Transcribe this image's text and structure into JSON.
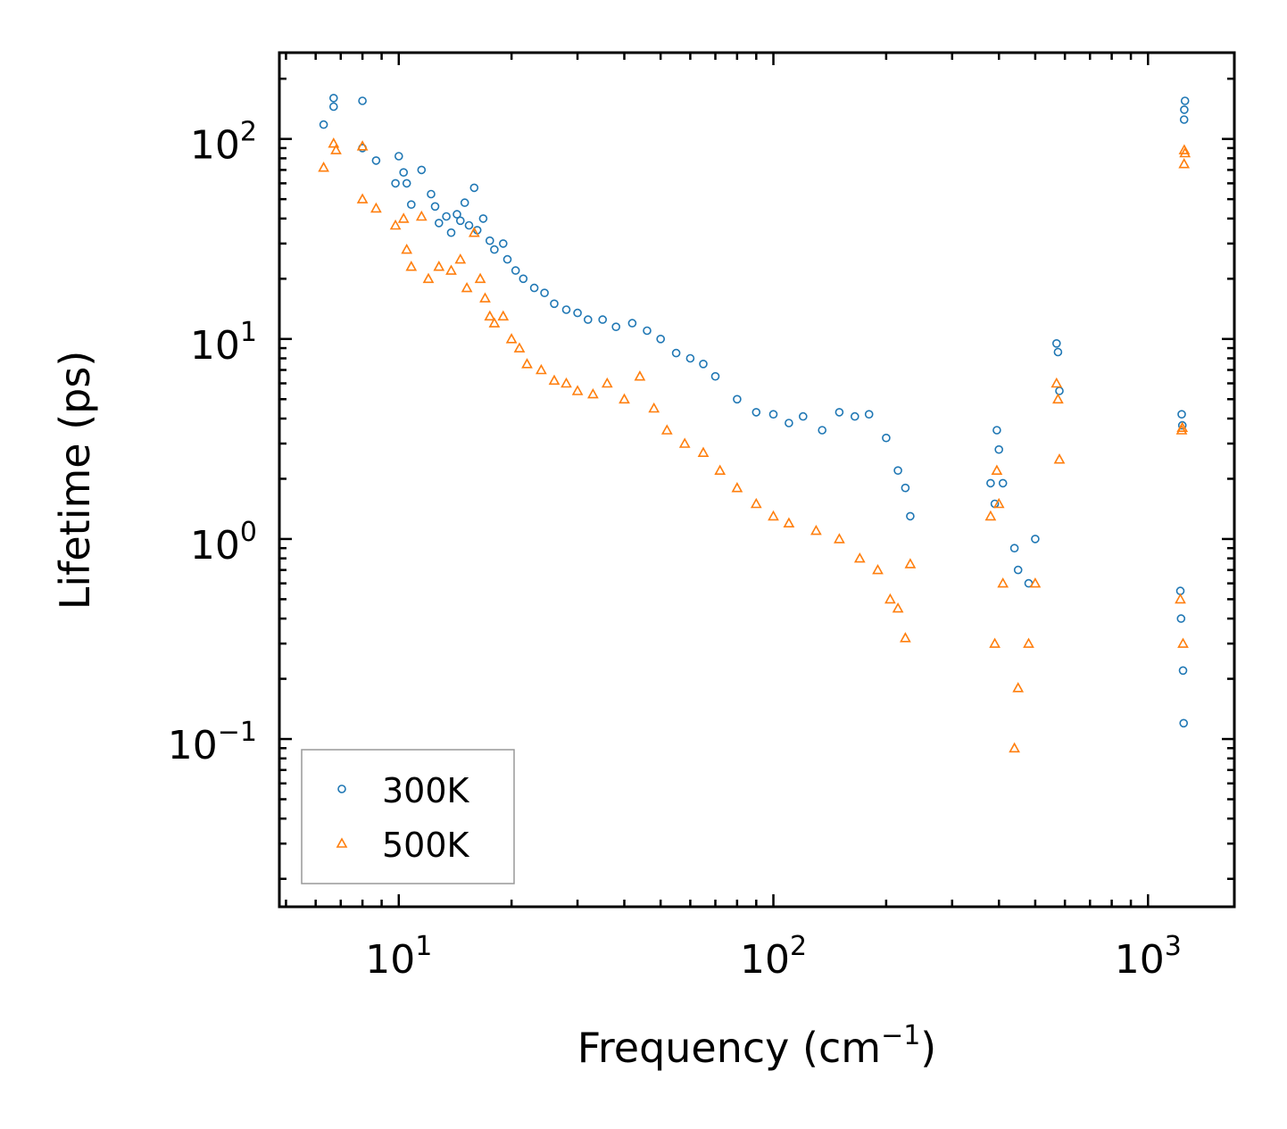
{
  "chart_data": {
    "type": "scatter",
    "title": "",
    "xlabel": "Frequency (cm",
    "xlabel_sup": "−1",
    "xlabel_suffix": ")",
    "ylabel": "Lifetime (ps)",
    "xscale": "log",
    "yscale": "log",
    "xlim": [
      4.8,
      1700
    ],
    "ylim": [
      0.0145,
      270
    ],
    "legend_position": "lower-left",
    "x_ticks": [
      {
        "base": "10",
        "exp": "1"
      },
      {
        "base": "10",
        "exp": "2"
      },
      {
        "base": "10",
        "exp": "3"
      }
    ],
    "y_ticks": [
      {
        "base": "10",
        "exp": "−1"
      },
      {
        "base": "10",
        "exp": "0"
      },
      {
        "base": "10",
        "exp": "1"
      },
      {
        "base": "10",
        "exp": "2"
      }
    ],
    "series": [
      {
        "name": "300K",
        "marker": "circle",
        "color": "#1f77b4",
        "points": [
          [
            6.3,
            118
          ],
          [
            6.7,
            160
          ],
          [
            6.7,
            145
          ],
          [
            8.0,
            155
          ],
          [
            8.0,
            90
          ],
          [
            8.7,
            78
          ],
          [
            9.8,
            60
          ],
          [
            10.0,
            82
          ],
          [
            10.3,
            68
          ],
          [
            10.5,
            60
          ],
          [
            10.8,
            47
          ],
          [
            11.5,
            70
          ],
          [
            12.2,
            53
          ],
          [
            12.5,
            46
          ],
          [
            12.8,
            38
          ],
          [
            13.4,
            41
          ],
          [
            13.8,
            34
          ],
          [
            14.3,
            42
          ],
          [
            14.6,
            39
          ],
          [
            15.0,
            48
          ],
          [
            15.4,
            37
          ],
          [
            15.9,
            57
          ],
          [
            16.2,
            35
          ],
          [
            16.8,
            40
          ],
          [
            17.5,
            31
          ],
          [
            18.0,
            28
          ],
          [
            19.0,
            30
          ],
          [
            19.5,
            25
          ],
          [
            20.5,
            22
          ],
          [
            21.5,
            20
          ],
          [
            23.0,
            18
          ],
          [
            24.5,
            17
          ],
          [
            26.0,
            15
          ],
          [
            28.0,
            14
          ],
          [
            30.0,
            13.5
          ],
          [
            32.0,
            12.5
          ],
          [
            35.0,
            12.5
          ],
          [
            38.0,
            11.5
          ],
          [
            42.0,
            12
          ],
          [
            46.0,
            11
          ],
          [
            50.0,
            10
          ],
          [
            55.0,
            8.5
          ],
          [
            60.0,
            8
          ],
          [
            65.0,
            7.5
          ],
          [
            70.0,
            6.5
          ],
          [
            80.0,
            5
          ],
          [
            90.0,
            4.3
          ],
          [
            100.0,
            4.2
          ],
          [
            110.0,
            3.8
          ],
          [
            120.0,
            4.1
          ],
          [
            135.0,
            3.5
          ],
          [
            150.0,
            4.3
          ],
          [
            165.0,
            4.1
          ],
          [
            180.0,
            4.2
          ],
          [
            200.0,
            3.2
          ],
          [
            215.0,
            2.2
          ],
          [
            225.0,
            1.8
          ],
          [
            232.0,
            1.3
          ],
          [
            380.0,
            1.9
          ],
          [
            390.0,
            1.5
          ],
          [
            395.0,
            3.5
          ],
          [
            400.0,
            2.8
          ],
          [
            410.0,
            1.9
          ],
          [
            440.0,
            0.9
          ],
          [
            450.0,
            0.7
          ],
          [
            480.0,
            0.6
          ],
          [
            500.0,
            1.0
          ],
          [
            570.0,
            9.5
          ],
          [
            575.0,
            8.6
          ],
          [
            580.0,
            5.5
          ],
          [
            1220.0,
            0.55
          ],
          [
            1225.0,
            0.4
          ],
          [
            1230.0,
            4.2
          ],
          [
            1235.0,
            3.7
          ],
          [
            1240.0,
            0.22
          ],
          [
            1245.0,
            0.12
          ],
          [
            1250.0,
            140
          ],
          [
            1255.0,
            155
          ],
          [
            1248.0,
            125
          ]
        ]
      },
      {
        "name": "500K",
        "marker": "triangle",
        "color": "#ff7f0e",
        "points": [
          [
            6.3,
            72
          ],
          [
            6.7,
            95
          ],
          [
            6.8,
            88
          ],
          [
            8.0,
            92
          ],
          [
            8.0,
            50
          ],
          [
            8.7,
            45
          ],
          [
            9.8,
            37
          ],
          [
            10.3,
            40
          ],
          [
            10.5,
            28
          ],
          [
            10.8,
            23
          ],
          [
            11.5,
            41
          ],
          [
            12.0,
            20
          ],
          [
            12.8,
            23
          ],
          [
            13.8,
            22
          ],
          [
            14.6,
            25
          ],
          [
            15.2,
            18
          ],
          [
            15.9,
            34
          ],
          [
            16.5,
            20
          ],
          [
            17.0,
            16
          ],
          [
            17.5,
            13
          ],
          [
            18.0,
            12
          ],
          [
            19.0,
            13
          ],
          [
            20.0,
            10
          ],
          [
            21.0,
            9
          ],
          [
            22.0,
            7.5
          ],
          [
            24.0,
            7
          ],
          [
            26.0,
            6.2
          ],
          [
            28.0,
            6
          ],
          [
            30.0,
            5.5
          ],
          [
            33.0,
            5.3
          ],
          [
            36.0,
            6
          ],
          [
            40.0,
            5
          ],
          [
            44.0,
            6.5
          ],
          [
            48.0,
            4.5
          ],
          [
            52.0,
            3.5
          ],
          [
            58.0,
            3
          ],
          [
            65.0,
            2.7
          ],
          [
            72.0,
            2.2
          ],
          [
            80.0,
            1.8
          ],
          [
            90.0,
            1.5
          ],
          [
            100.0,
            1.3
          ],
          [
            110.0,
            1.2
          ],
          [
            130.0,
            1.1
          ],
          [
            150.0,
            1.0
          ],
          [
            170.0,
            0.8
          ],
          [
            190.0,
            0.7
          ],
          [
            205.0,
            0.5
          ],
          [
            215.0,
            0.45
          ],
          [
            225.0,
            0.32
          ],
          [
            232.0,
            0.75
          ],
          [
            380.0,
            1.3
          ],
          [
            390.0,
            0.3
          ],
          [
            395.0,
            2.2
          ],
          [
            400.0,
            1.5
          ],
          [
            410.0,
            0.6
          ],
          [
            440.0,
            0.09
          ],
          [
            450.0,
            0.18
          ],
          [
            480.0,
            0.3
          ],
          [
            500.0,
            0.6
          ],
          [
            570.0,
            6
          ],
          [
            575.0,
            5
          ],
          [
            580.0,
            2.5
          ],
          [
            1220.0,
            0.5
          ],
          [
            1230.0,
            3.5
          ],
          [
            1235.0,
            3.6
          ],
          [
            1240.0,
            0.3
          ],
          [
            1250.0,
            88
          ],
          [
            1255.0,
            85
          ],
          [
            1248.0,
            75
          ]
        ]
      }
    ]
  }
}
